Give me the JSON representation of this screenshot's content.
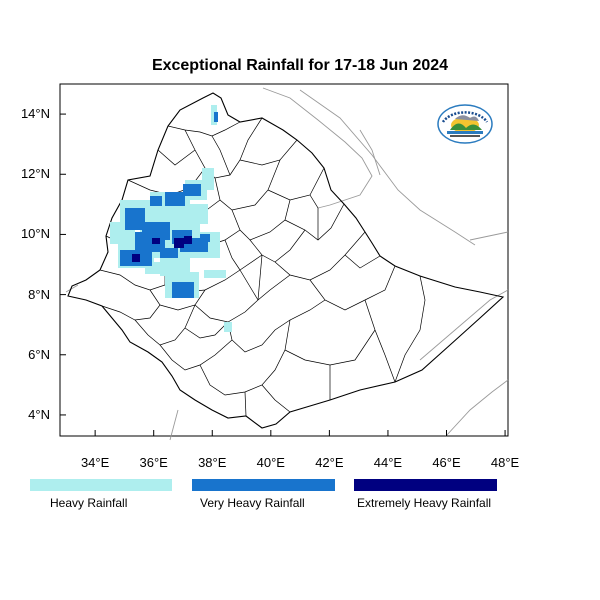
{
  "map": {
    "title": "Exceptional Rainfall for 17-18 Jun 2024",
    "lat_ticks": [
      {
        "label": "14°N",
        "lat": 14
      },
      {
        "label": "12°N",
        "lat": 12
      },
      {
        "label": "10°N",
        "lat": 10
      },
      {
        "label": "8°N",
        "lat": 8
      },
      {
        "label": "6°N",
        "lat": 6
      },
      {
        "label": "4°N",
        "lat": 4
      }
    ],
    "lon_ticks": [
      {
        "label": "34°E",
        "lon": 34
      },
      {
        "label": "36°E",
        "lon": 36
      },
      {
        "label": "38°E",
        "lon": 38
      },
      {
        "label": "40°E",
        "lon": 40
      },
      {
        "label": "42°E",
        "lon": 42
      },
      {
        "label": "44°E",
        "lon": 44
      },
      {
        "label": "46°E",
        "lon": 46
      },
      {
        "label": "48°E",
        "lon": 48
      }
    ],
    "lon_range": [
      32.8,
      48.1
    ],
    "lat_range": [
      3.3,
      15.0
    ]
  },
  "legend": [
    {
      "label": "Heavy Rainfall",
      "color": "#aeeeee"
    },
    {
      "label": "Very Heavy Rainfall",
      "color": "#1874cd"
    },
    {
      "label": "Extremely Heavy Rainfall",
      "color": "#000080"
    }
  ],
  "logo": {
    "name": "agency-logo-icon"
  }
}
